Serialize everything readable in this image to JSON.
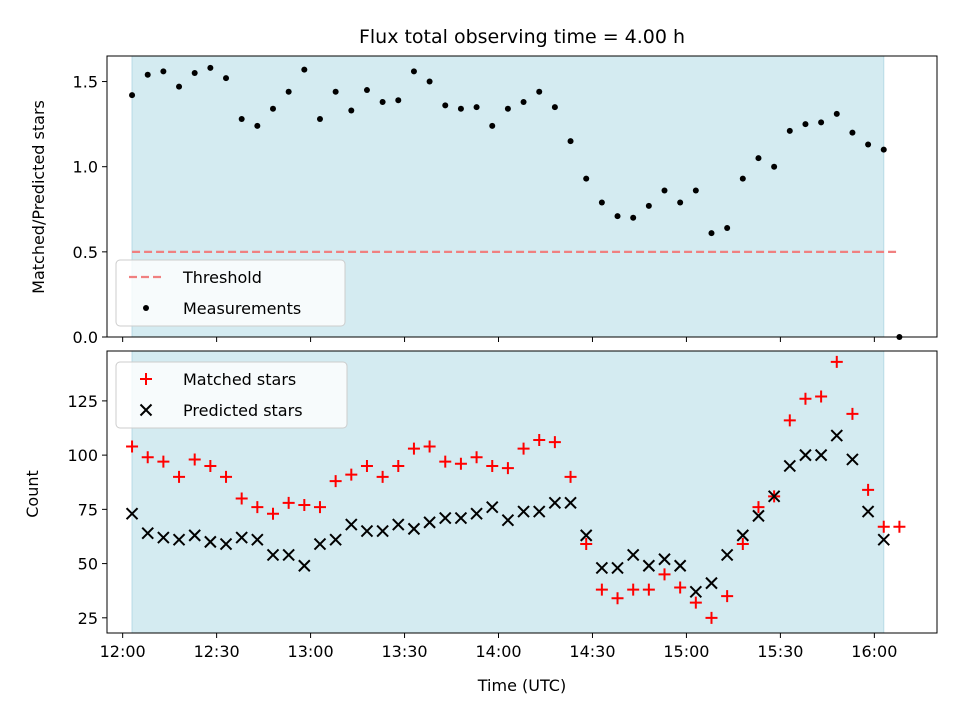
{
  "colors": {
    "band": "#d4ebf1",
    "threshold": "#f08080",
    "matched": "#ff0000",
    "predicted": "#000000",
    "measurement": "#000000"
  },
  "chart_data": [
    {
      "type": "scatter",
      "title": "Flux total observing time = 4.00 h",
      "xlabel": "",
      "ylabel": "Matched/Predicted stars",
      "ylim": [
        0,
        1.65
      ],
      "yticks": [
        "0.0",
        "0.5",
        "1.0",
        "1.5"
      ],
      "xticks": [
        "12:00",
        "12:30",
        "13:00",
        "13:30",
        "14:00",
        "14:30",
        "15:00",
        "15:30",
        "16:00"
      ],
      "shaded_range": [
        "12:03",
        "16:03"
      ],
      "threshold": {
        "name": "Threshold",
        "value": 0.5,
        "x_range": [
          "12:03",
          "16:08"
        ]
      },
      "legend": [
        "Threshold",
        "Measurements"
      ],
      "legend_position": "lower-left",
      "series": [
        {
          "name": "Measurements",
          "x": [
            "12:03",
            "12:08",
            "12:13",
            "12:18",
            "12:23",
            "12:28",
            "12:33",
            "12:38",
            "12:43",
            "12:48",
            "12:53",
            "12:58",
            "13:03",
            "13:08",
            "13:13",
            "13:18",
            "13:23",
            "13:28",
            "13:33",
            "13:38",
            "13:43",
            "13:48",
            "13:53",
            "13:58",
            "14:03",
            "14:08",
            "14:13",
            "14:18",
            "14:23",
            "14:28",
            "14:33",
            "14:38",
            "14:43",
            "14:48",
            "14:53",
            "14:58",
            "15:03",
            "15:08",
            "15:13",
            "15:18",
            "15:23",
            "15:28",
            "15:33",
            "15:38",
            "15:43",
            "15:48",
            "15:53",
            "15:58",
            "16:03",
            "16:08"
          ],
          "values": [
            1.42,
            1.54,
            1.56,
            1.47,
            1.55,
            1.58,
            1.52,
            1.28,
            1.24,
            1.34,
            1.44,
            1.57,
            1.28,
            1.44,
            1.33,
            1.45,
            1.38,
            1.39,
            1.56,
            1.5,
            1.36,
            1.34,
            1.35,
            1.24,
            1.34,
            1.38,
            1.44,
            1.35,
            1.15,
            0.93,
            0.79,
            0.71,
            0.7,
            0.77,
            0.86,
            0.79,
            0.86,
            0.61,
            0.64,
            0.93,
            1.05,
            1.0,
            1.21,
            1.25,
            1.26,
            1.31,
            1.2,
            1.13,
            1.1,
            0.0
          ]
        }
      ]
    },
    {
      "type": "scatter",
      "title": "",
      "xlabel": "Time (UTC)",
      "ylabel": "Count",
      "ylim": [
        18,
        148
      ],
      "yticks": [
        "25",
        "50",
        "75",
        "100",
        "125"
      ],
      "xticks": [
        "12:00",
        "12:30",
        "13:00",
        "13:30",
        "14:00",
        "14:30",
        "15:00",
        "15:30",
        "16:00"
      ],
      "shaded_range": [
        "12:03",
        "16:03"
      ],
      "legend": [
        "Matched stars",
        "Predicted stars"
      ],
      "legend_position": "upper-left",
      "series": [
        {
          "name": "Matched stars",
          "x": [
            "12:03",
            "12:08",
            "12:13",
            "12:18",
            "12:23",
            "12:28",
            "12:33",
            "12:38",
            "12:43",
            "12:48",
            "12:53",
            "12:58",
            "13:03",
            "13:08",
            "13:13",
            "13:18",
            "13:23",
            "13:28",
            "13:33",
            "13:38",
            "13:43",
            "13:48",
            "13:53",
            "13:58",
            "14:03",
            "14:08",
            "14:13",
            "14:18",
            "14:23",
            "14:28",
            "14:33",
            "14:38",
            "14:43",
            "14:48",
            "14:53",
            "14:58",
            "15:03",
            "15:08",
            "15:13",
            "15:18",
            "15:23",
            "15:28",
            "15:33",
            "15:38",
            "15:43",
            "15:48",
            "15:53",
            "15:58",
            "16:03",
            "16:08"
          ],
          "values": [
            104,
            99,
            97,
            90,
            98,
            95,
            90,
            80,
            76,
            73,
            78,
            77,
            76,
            88,
            91,
            95,
            90,
            95,
            103,
            104,
            97,
            96,
            99,
            95,
            94,
            103,
            107,
            106,
            90,
            59,
            38,
            34,
            38,
            38,
            45,
            39,
            32,
            25,
            35,
            59,
            76,
            81,
            116,
            126,
            127,
            143,
            119,
            84,
            67,
            67
          ]
        },
        {
          "name": "Predicted stars",
          "x": [
            "12:03",
            "12:08",
            "12:13",
            "12:18",
            "12:23",
            "12:28",
            "12:33",
            "12:38",
            "12:43",
            "12:48",
            "12:53",
            "12:58",
            "13:03",
            "13:08",
            "13:13",
            "13:18",
            "13:23",
            "13:28",
            "13:33",
            "13:38",
            "13:43",
            "13:48",
            "13:53",
            "13:58",
            "14:03",
            "14:08",
            "14:13",
            "14:18",
            "14:23",
            "14:28",
            "14:33",
            "14:38",
            "14:43",
            "14:48",
            "14:53",
            "14:58",
            "15:03",
            "15:08",
            "15:13",
            "15:18",
            "15:23",
            "15:28",
            "15:33",
            "15:38",
            "15:43",
            "15:48",
            "15:53",
            "15:58",
            "16:03"
          ],
          "values": [
            73,
            64,
            62,
            61,
            63,
            60,
            59,
            62,
            61,
            54,
            54,
            49,
            59,
            61,
            68,
            65,
            65,
            68,
            66,
            69,
            71,
            71,
            73,
            76,
            70,
            74,
            74,
            78,
            78,
            63,
            48,
            48,
            54,
            49,
            52,
            49,
            37,
            41,
            54,
            63,
            72,
            81,
            95,
            100,
            100,
            109,
            98,
            74,
            61
          ]
        }
      ]
    }
  ]
}
